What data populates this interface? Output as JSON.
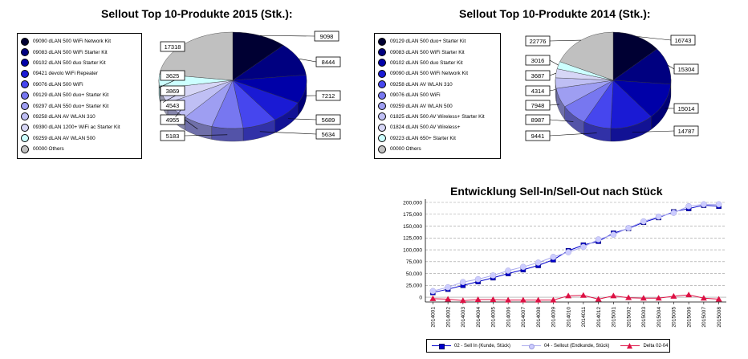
{
  "charts": {
    "pie2015": {
      "title": "Sellout Top 10-Produkte 2015 (Stk.):",
      "legend": [
        {
          "label": "09090 dLAN 500 WiFi Network Kit",
          "color": "#000033"
        },
        {
          "label": "09083 dLAN 500 WiFi Starter Kit",
          "color": "#000080"
        },
        {
          "label": "09102 dLAN 500 duo Starter Kit",
          "color": "#0000a8"
        },
        {
          "label": "09421 devolo WiFi Repeater",
          "color": "#1a1ad4"
        },
        {
          "label": "09076 dLAN 500 WiFi",
          "color": "#4646ee"
        },
        {
          "label": "09129 dLAN 500 duo+ Starter Kit",
          "color": "#7777f0"
        },
        {
          "label": "09297 dLAN 550 duo+ Starter Kit",
          "color": "#9e9ef2"
        },
        {
          "label": "09258 dLAN AV WLAN 310",
          "color": "#bfbff4"
        },
        {
          "label": "09390 dLAN 1200+ WiFi ac Starter Kit",
          "color": "#d6d6f6"
        },
        {
          "label": "09259 dLAN AV WLAN 500",
          "color": "#ccffff"
        },
        {
          "label": "00000 Others",
          "color": "#c0c0c0"
        }
      ]
    },
    "pie2014": {
      "title": "Sellout Top 10-Produkte 2014 (Stk.):",
      "legend": [
        {
          "label": "09129 dLAN 500 duo+ Starter Kit",
          "color": "#000033"
        },
        {
          "label": "09083 dLAN 500 WiFi Starter Kit",
          "color": "#000080"
        },
        {
          "label": "09102 dLAN 500 duo Starter Kit",
          "color": "#0000a8"
        },
        {
          "label": "09090 dLAN 500 WiFi Network Kit",
          "color": "#1a1ad4"
        },
        {
          "label": "09258 dLAN AV WLAN 310",
          "color": "#4646ee"
        },
        {
          "label": "09076 dLAN 500 WiFi",
          "color": "#7777f0"
        },
        {
          "label": "09259 dLAN AV WLAN 500",
          "color": "#9e9ef2"
        },
        {
          "label": "01825 dLAN 500 AV Wireless+ Starter Kit",
          "color": "#bfbff4"
        },
        {
          "label": "01824 dLAN 500 AV Wireless+",
          "color": "#d6d6f6"
        },
        {
          "label": "09223 dLAN 650+ Starter Kit",
          "color": "#ccffff"
        },
        {
          "label": "00000 Others",
          "color": "#c0c0c0"
        }
      ]
    },
    "line": {
      "title": "Entwicklung Sell-In/Sell-Out nach Stück",
      "legend": {
        "sellin": "02 - Sell In (Kunde, Stück)",
        "sellout": "04 - Sellout (Endkunde, Stück)",
        "delta": "Delta 02-04"
      }
    }
  },
  "chart_data": [
    {
      "type": "pie",
      "title": "Sellout Top 10-Produkte 2015 (Stk.):",
      "categories": [
        "09090 dLAN 500 WiFi Network Kit",
        "09083 dLAN 500 WiFi Starter Kit",
        "09102 dLAN 500 duo Starter Kit",
        "09421 devolo WiFi Repeater",
        "09076 dLAN 500 WiFi",
        "09129 dLAN 500 duo+ Starter Kit",
        "09297 dLAN 550 duo+ Starter Kit",
        "09258 dLAN AV WLAN 310",
        "09390 dLAN 1200+ WiFi ac Starter Kit",
        "09259 dLAN AV WLAN 500",
        "00000 Others"
      ],
      "values": [
        9098,
        8444,
        7212,
        5689,
        5634,
        5183,
        4955,
        4543,
        3869,
        3625,
        17318
      ]
    },
    {
      "type": "pie",
      "title": "Sellout Top 10-Produkte 2014 (Stk.):",
      "categories": [
        "09129 dLAN 500 duo+ Starter Kit",
        "09083 dLAN 500 WiFi Starter Kit",
        "09102 dLAN 500 duo Starter Kit",
        "09090 dLAN 500 WiFi Network Kit",
        "09258 dLAN AV WLAN 310",
        "09076 dLAN 500 WiFi",
        "09259 dLAN AV WLAN 500",
        "01825 dLAN 500 AV Wireless+ Starter Kit",
        "01824 dLAN 500 AV Wireless+",
        "09223 dLAN 650+ Starter Kit",
        "00000 Others"
      ],
      "values": [
        16743,
        15304,
        15014,
        14787,
        9441,
        8987,
        7948,
        4314,
        3687,
        3016,
        22776
      ]
    },
    {
      "type": "line",
      "title": "Entwicklung Sell-In/Sell-Out nach Stück",
      "categories": [
        "2014001",
        "2014002",
        "2014003",
        "2014004",
        "2014005",
        "2014006",
        "2014007",
        "2014008",
        "2014009",
        "2014010",
        "2014011",
        "2014012",
        "2015001",
        "2015002",
        "2015003",
        "2015004",
        "2015005",
        "2015006",
        "2015007",
        "2015008"
      ],
      "ylim": [
        -10000,
        200000
      ],
      "yticks": [
        0,
        25000,
        50000,
        75000,
        100000,
        125000,
        150000,
        175000,
        200000
      ],
      "ytick_labels": [
        "0",
        "25,000",
        "50,000",
        "75,000",
        "100,000",
        "125,000",
        "150,000",
        "175,000",
        "200,000"
      ],
      "series": [
        {
          "name": "02 - Sell In (Kunde, Stück)",
          "color": "#0000cc",
          "marker": "square",
          "values": [
            10000,
            17000,
            25000,
            33000,
            41000,
            50000,
            58000,
            67000,
            79000,
            98000,
            110000,
            118000,
            135000,
            145000,
            158000,
            168000,
            180000,
            187000,
            194000,
            192000
          ]
        },
        {
          "name": "04 - Sellout (Endkunde, Stück)",
          "color": "#ccccff",
          "marker": "circle",
          "values": [
            13000,
            21000,
            32000,
            38000,
            46000,
            56000,
            64000,
            73000,
            85000,
            95000,
            106000,
            122000,
            132000,
            146000,
            160000,
            170000,
            178000,
            192000,
            196000,
            196000
          ]
        },
        {
          "name": "Delta 02-04",
          "color": "#dd1144",
          "marker": "triangle",
          "values": [
            -3000,
            -4000,
            -7000,
            -5000,
            -5000,
            -6000,
            -6000,
            -6000,
            -6000,
            3000,
            4000,
            -4000,
            3000,
            -1000,
            -2000,
            -2000,
            2000,
            5000,
            -2000,
            -4000
          ]
        }
      ]
    }
  ]
}
